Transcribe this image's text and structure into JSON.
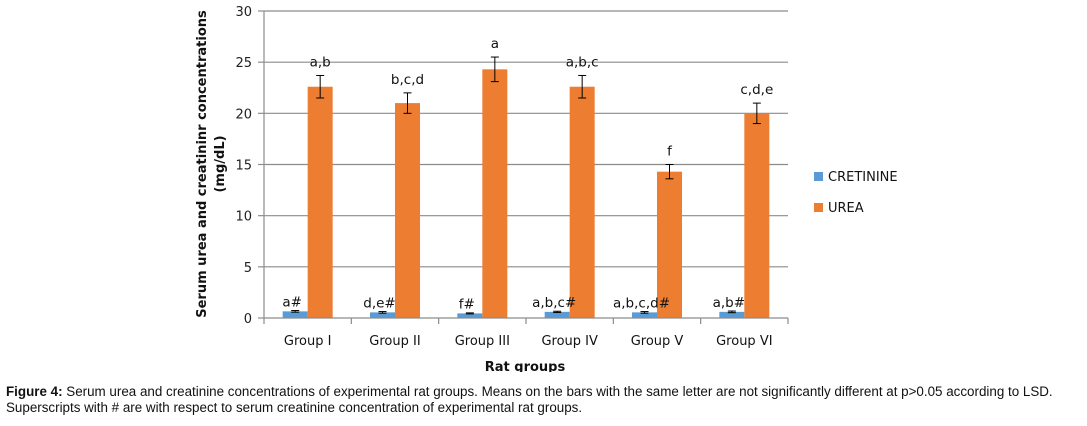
{
  "chart_data": {
    "type": "bar",
    "title": "",
    "xlabel": "Rat groups",
    "ylabel": "Serum urea and creatininr concentrations (mg/dL)",
    "ylabel_lines": [
      "Serum urea and creatininr concentrations",
      "(mg/dL)"
    ],
    "ylim": [
      0,
      30
    ],
    "yticks": [
      0,
      5,
      10,
      15,
      20,
      25,
      30
    ],
    "grid": true,
    "legend_position": "right",
    "categories": [
      "Group I",
      "Group II",
      "Group III",
      "Group IV",
      "Group V",
      "Group VI"
    ],
    "series": [
      {
        "name": "CRETININE",
        "color": "#5b9bd5",
        "values": [
          0.65,
          0.55,
          0.45,
          0.6,
          0.55,
          0.6
        ],
        "errors": [
          0.08,
          0.08,
          0.05,
          0.06,
          0.08,
          0.08
        ],
        "annotations": [
          "a#",
          "d,e#",
          "f#",
          "a,b,c#",
          "a,b,c,d#",
          "a,b#"
        ]
      },
      {
        "name": "UREA",
        "color": "#ed7d31",
        "values": [
          22.6,
          21.0,
          24.3,
          22.6,
          14.3,
          20.0
        ],
        "errors": [
          1.1,
          1.0,
          1.2,
          1.1,
          0.7,
          1.0
        ],
        "annotations": [
          "a,b",
          "b,c,d",
          "a",
          "a,b,c",
          "f",
          "c,d,e"
        ]
      }
    ]
  },
  "caption": {
    "figure_label": "Figure 4:",
    "text": " Serum urea and creatinine concentrations of experimental rat groups. Means on the bars with the same letter are not significantly different at p>0.05 according to LSD. Superscripts with # are with respect to serum creatinine concentration of experimental rat groups."
  }
}
